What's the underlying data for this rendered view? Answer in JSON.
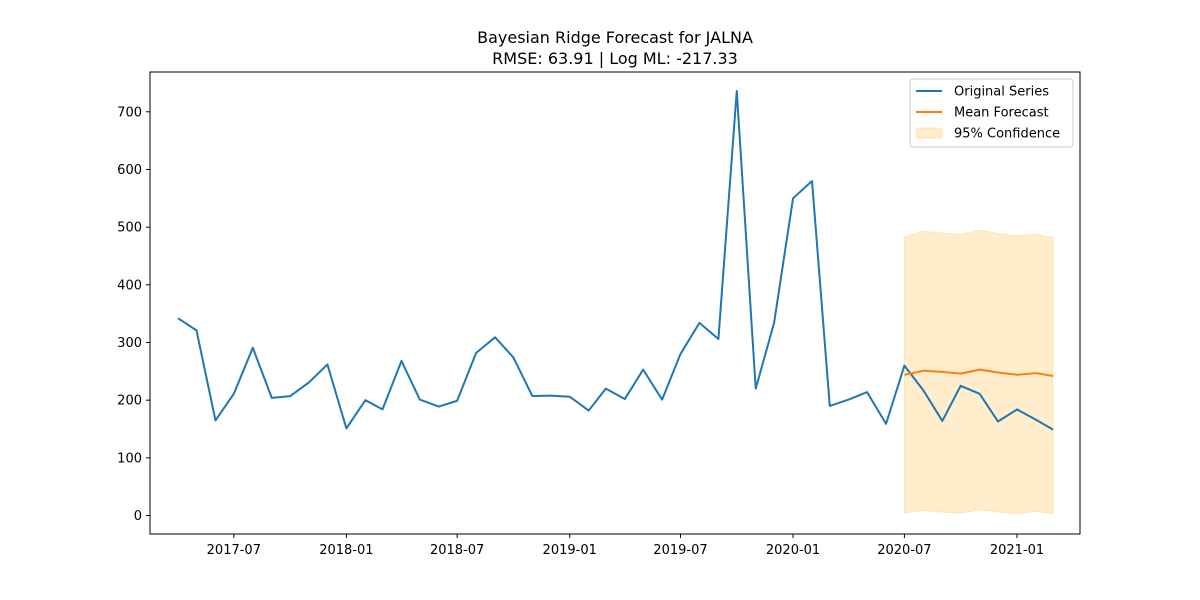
{
  "chart_data": {
    "type": "line",
    "title": "Bayesian Ridge Forecast for JALNA",
    "subtitle": "RMSE: 63.91 | Log ML: -217.33",
    "xlabel": "",
    "ylabel": "",
    "xlim": [
      "2017-02-14",
      "2021-04-14"
    ],
    "ylim": [
      -32,
      769
    ],
    "x_ticks": [
      "2017-07-01",
      "2018-01-01",
      "2018-07-01",
      "2019-01-01",
      "2019-07-01",
      "2020-01-01",
      "2020-07-01",
      "2021-01-01"
    ],
    "x_tick_labels": [
      "2017-07",
      "2018-01",
      "2018-07",
      "2019-01",
      "2019-07",
      "2020-01",
      "2020-07",
      "2021-01"
    ],
    "y_ticks": [
      0,
      100,
      200,
      300,
      400,
      500,
      600,
      700
    ],
    "grid": false,
    "legend_position": "top-right",
    "series": [
      {
        "name": "Original Series",
        "color": "#1f77b4",
        "x": [
          "2017-04-01",
          "2017-05-01",
          "2017-06-01",
          "2017-07-01",
          "2017-08-01",
          "2017-09-01",
          "2017-10-01",
          "2017-11-01",
          "2017-12-01",
          "2018-01-01",
          "2018-02-01",
          "2018-03-01",
          "2018-04-01",
          "2018-05-01",
          "2018-06-01",
          "2018-07-01",
          "2018-08-01",
          "2018-09-01",
          "2018-10-01",
          "2018-11-01",
          "2018-12-01",
          "2019-01-01",
          "2019-02-01",
          "2019-03-01",
          "2019-04-01",
          "2019-05-01",
          "2019-06-01",
          "2019-07-01",
          "2019-08-01",
          "2019-09-01",
          "2019-10-01",
          "2019-11-01",
          "2019-12-01",
          "2020-01-01",
          "2020-02-01",
          "2020-03-01",
          "2020-04-01",
          "2020-05-01",
          "2020-06-01",
          "2020-07-01",
          "2020-08-01",
          "2020-09-01",
          "2020-10-01",
          "2020-11-01",
          "2020-12-01",
          "2021-01-01",
          "2021-02-01",
          "2021-03-01"
        ],
        "values": [
          342,
          321,
          165,
          211,
          291,
          204,
          207,
          231,
          262,
          151,
          200,
          184,
          268,
          201,
          189,
          199,
          282,
          309,
          274,
          207,
          208,
          206,
          182,
          220,
          202,
          253,
          201,
          280,
          334,
          306,
          736,
          220,
          334,
          550,
          580,
          190,
          201,
          214,
          159,
          260,
          217,
          164,
          225,
          211,
          163,
          184,
          166,
          149
        ]
      },
      {
        "name": "Mean Forecast",
        "color": "#ff7f0e",
        "x": [
          "2020-07-01",
          "2020-08-01",
          "2020-09-01",
          "2020-10-01",
          "2020-11-01",
          "2020-12-01",
          "2021-01-01",
          "2021-02-01",
          "2021-03-01"
        ],
        "values": [
          244,
          251,
          249,
          246,
          253,
          248,
          244,
          247,
          242
        ]
      }
    ],
    "confidence_band": {
      "name": "95% Confidence",
      "color": "#ffa500",
      "x": [
        "2020-07-01",
        "2020-08-01",
        "2020-09-01",
        "2020-10-01",
        "2020-11-01",
        "2020-12-01",
        "2021-01-01",
        "2021-02-01",
        "2021-03-01"
      ],
      "lower": [
        4,
        9,
        6,
        4,
        10,
        6,
        3,
        7,
        3
      ],
      "upper": [
        483,
        493,
        490,
        487,
        495,
        489,
        485,
        488,
        482
      ]
    }
  }
}
